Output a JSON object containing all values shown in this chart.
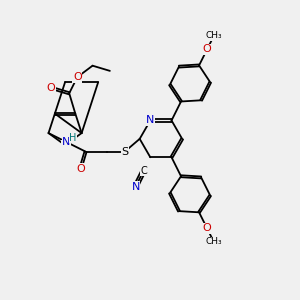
{
  "bg": "#f0f0f0",
  "bc": "#000000",
  "lw": 1.3,
  "colors": {
    "N": "#0000cc",
    "O": "#cc0000",
    "S": "#cccc00",
    "S2": "#000000",
    "H": "#007777"
  },
  "xlim": [
    -1.5,
    12.5
  ],
  "ylim": [
    -1.0,
    9.5
  ]
}
